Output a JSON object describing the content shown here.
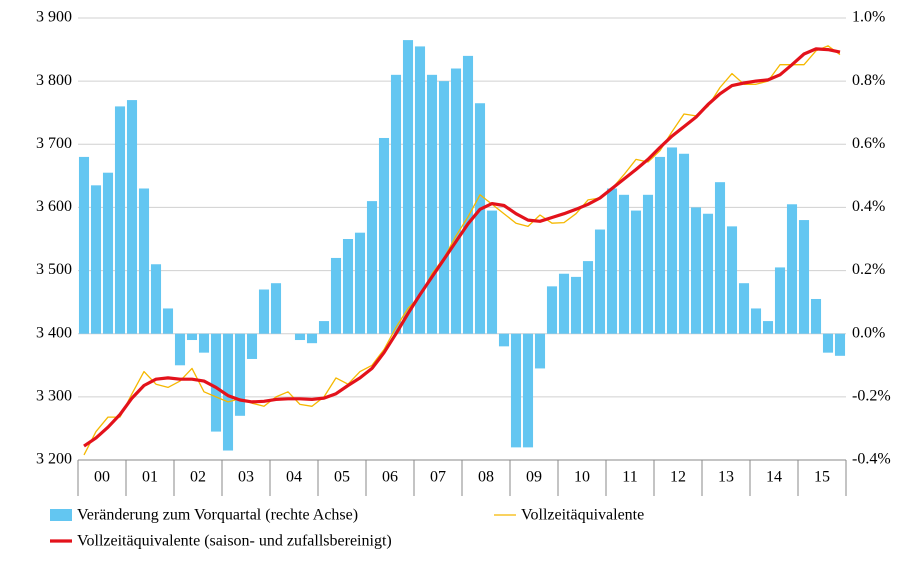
{
  "chart_data": {
    "type": "combo",
    "categories": [
      null,
      "00",
      null,
      null,
      null,
      "01",
      null,
      null,
      null,
      "02",
      null,
      null,
      null,
      "03",
      null,
      null,
      null,
      "04",
      null,
      null,
      null,
      "05",
      null,
      null,
      null,
      "06",
      null,
      null,
      null,
      "07",
      null,
      null,
      null,
      "08",
      null,
      null,
      null,
      "09",
      null,
      null,
      null,
      "10",
      null,
      null,
      null,
      "11",
      null,
      null,
      null,
      "12",
      null,
      null,
      null,
      "13",
      null,
      null,
      null,
      "14",
      null,
      null,
      null,
      "15",
      null,
      null
    ],
    "series": [
      {
        "name": "Veränderung zum Vorquartal (rechte Achse)",
        "type": "bar",
        "axis": "y2",
        "color": "#63c6f1",
        "values": [
          0.56,
          0.47,
          0.51,
          0.72,
          0.74,
          0.46,
          0.22,
          0.08,
          -0.1,
          -0.02,
          -0.06,
          -0.31,
          -0.37,
          -0.26,
          -0.08,
          0.14,
          0.16,
          0.0,
          -0.02,
          -0.03,
          0.04,
          0.24,
          0.3,
          0.32,
          0.42,
          0.62,
          0.82,
          0.93,
          0.91,
          0.82,
          0.8,
          0.84,
          0.88,
          0.73,
          0.39,
          -0.04,
          -0.36,
          -0.36,
          -0.11,
          0.15,
          0.19,
          0.18,
          0.23,
          0.33,
          0.46,
          0.44,
          0.39,
          0.44,
          0.56,
          0.59,
          0.57,
          0.4,
          0.38,
          0.48,
          0.34,
          0.16,
          0.08,
          0.04,
          0.21,
          0.41,
          0.36,
          0.11,
          -0.06,
          -0.07
        ]
      },
      {
        "name": "Vollzeitäquivalente",
        "type": "line",
        "color": "#f5b800",
        "width": 1.3,
        "values": [
          3208,
          3245,
          3268,
          3268,
          3305,
          3340,
          3320,
          3315,
          3325,
          3345,
          3308,
          3300,
          3292,
          3297,
          3290,
          3285,
          3300,
          3308,
          3288,
          3285,
          3300,
          3330,
          3320,
          3340,
          3350,
          3375,
          3410,
          3440,
          3460,
          3495,
          3520,
          3555,
          3585,
          3620,
          3605,
          3590,
          3575,
          3570,
          3588,
          3575,
          3576,
          3590,
          3612,
          3615,
          3630,
          3652,
          3676,
          3672,
          3690,
          3720,
          3748,
          3745,
          3760,
          3790,
          3812,
          3795,
          3795,
          3800,
          3826,
          3826,
          3826,
          3848,
          3856,
          3842
        ]
      },
      {
        "name": "Vollzeitäquivalente (saison- und zufallsbereinigt)",
        "type": "line",
        "color": "#e3121b",
        "width": 3.2,
        "values": [
          3222,
          3235,
          3252,
          3272,
          3298,
          3318,
          3328,
          3330,
          3328,
          3328,
          3325,
          3315,
          3302,
          3295,
          3292,
          3293,
          3296,
          3297,
          3297,
          3296,
          3298,
          3305,
          3318,
          3330,
          3345,
          3370,
          3400,
          3432,
          3462,
          3490,
          3518,
          3546,
          3574,
          3597,
          3606,
          3603,
          3590,
          3580,
          3578,
          3584,
          3590,
          3597,
          3605,
          3615,
          3630,
          3645,
          3660,
          3676,
          3695,
          3713,
          3728,
          3743,
          3763,
          3780,
          3793,
          3797,
          3800,
          3802,
          3810,
          3826,
          3843,
          3851,
          3850,
          3846
        ]
      }
    ],
    "ylim": [
      3200,
      3900
    ],
    "yticks": [
      {
        "value": 3200,
        "label": "3 200"
      },
      {
        "value": 3300,
        "label": "3 300"
      },
      {
        "value": 3400,
        "label": "3 400"
      },
      {
        "value": 3500,
        "label": "3 500"
      },
      {
        "value": 3600,
        "label": "3 600"
      },
      {
        "value": 3700,
        "label": "3 700"
      },
      {
        "value": 3800,
        "label": "3 800"
      },
      {
        "value": 3900,
        "label": "3 900"
      }
    ],
    "y2lim": [
      -0.4,
      1.0
    ],
    "y2ticks": [
      {
        "value": -0.4,
        "label": "-0.4%"
      },
      {
        "value": -0.2,
        "label": "-0.2%"
      },
      {
        "value": 0.0,
        "label": "0.0%"
      },
      {
        "value": 0.2,
        "label": "0.2%"
      },
      {
        "value": 0.4,
        "label": "0.4%"
      },
      {
        "value": 0.6,
        "label": "0.6%"
      },
      {
        "value": 0.8,
        "label": "0.8%"
      },
      {
        "value": 1.0,
        "label": "1.0%"
      }
    ],
    "grid": true
  }
}
